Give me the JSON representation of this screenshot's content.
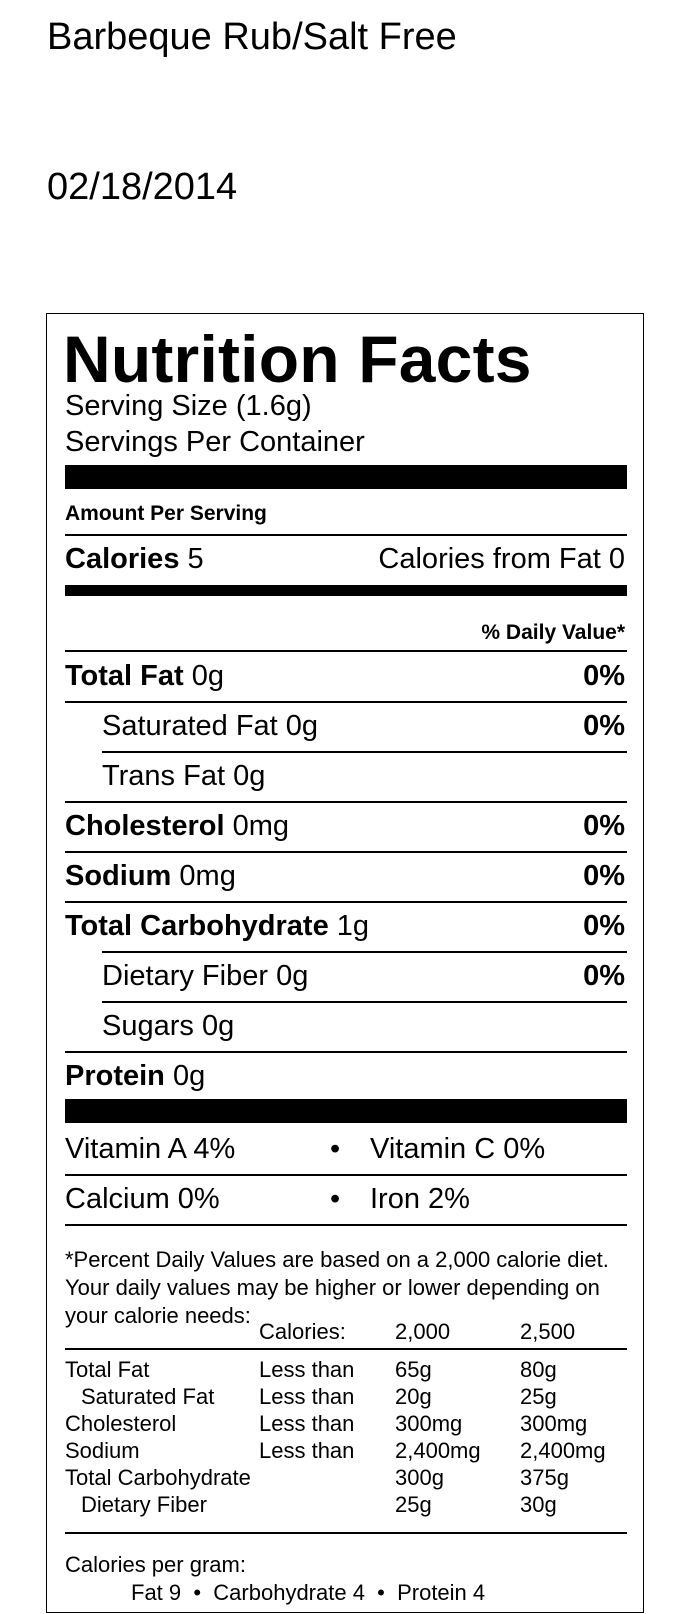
{
  "product_title": "Barbeque Rub/Salt Free",
  "date": "02/18/2014",
  "label": {
    "heading": "Nutrition Facts",
    "serving_size": "Serving Size (1.6g)",
    "servings_per_container": "Servings Per Container",
    "amount_per_serving": "Amount Per Serving",
    "calories_label": "Calories",
    "calories_value": "5",
    "calories_from_fat": "Calories from Fat 0",
    "daily_value_header": "% Daily Value*",
    "rows": [
      {
        "name": "Total Fat",
        "amount": "0g",
        "dv": "0%"
      },
      {
        "name": "Saturated Fat",
        "amount": "0g",
        "dv": "0%"
      },
      {
        "name": "Trans Fat",
        "amount": "0g",
        "dv": ""
      },
      {
        "name": "Cholesterol",
        "amount": "0mg",
        "dv": "0%"
      },
      {
        "name": "Sodium",
        "amount": "0mg",
        "dv": "0%"
      },
      {
        "name": "Total Carbohydrate",
        "amount": "1g",
        "dv": "0%"
      },
      {
        "name": "Dietary Fiber",
        "amount": "0g",
        "dv": "0%"
      },
      {
        "name": "Sugars",
        "amount": "0g",
        "dv": ""
      },
      {
        "name": "Protein",
        "amount": "0g",
        "dv": ""
      }
    ],
    "vitamin_a": "Vitamin A 4%",
    "vitamin_c": "Vitamin C 0%",
    "calcium": "Calcium 0%",
    "iron": "Iron 2%",
    "bullet": "•",
    "footnote": "*Percent Daily Values are based on a 2,000 calorie diet. Your daily values may be higher or lower depending on your calorie needs:",
    "table": {
      "header": [
        "",
        "Calories:",
        "2,000",
        "2,500"
      ],
      "rows": [
        [
          "Total Fat",
          "Less than",
          "65g",
          "80g"
        ],
        [
          "Saturated Fat",
          "Less than",
          "20g",
          "25g"
        ],
        [
          "Cholesterol",
          "Less than",
          "300mg",
          "300mg"
        ],
        [
          "Sodium",
          "Less than",
          "2,400mg",
          "2,400mg"
        ],
        [
          "Total Carbohydrate",
          "",
          "300g",
          "375g"
        ],
        [
          "Dietary Fiber",
          "",
          "25g",
          "30g"
        ]
      ]
    },
    "calories_per_gram": "Calories per gram:",
    "calories_per_gram_values": "Fat 9  •  Carbohydrate 4  •  Protein 4"
  }
}
